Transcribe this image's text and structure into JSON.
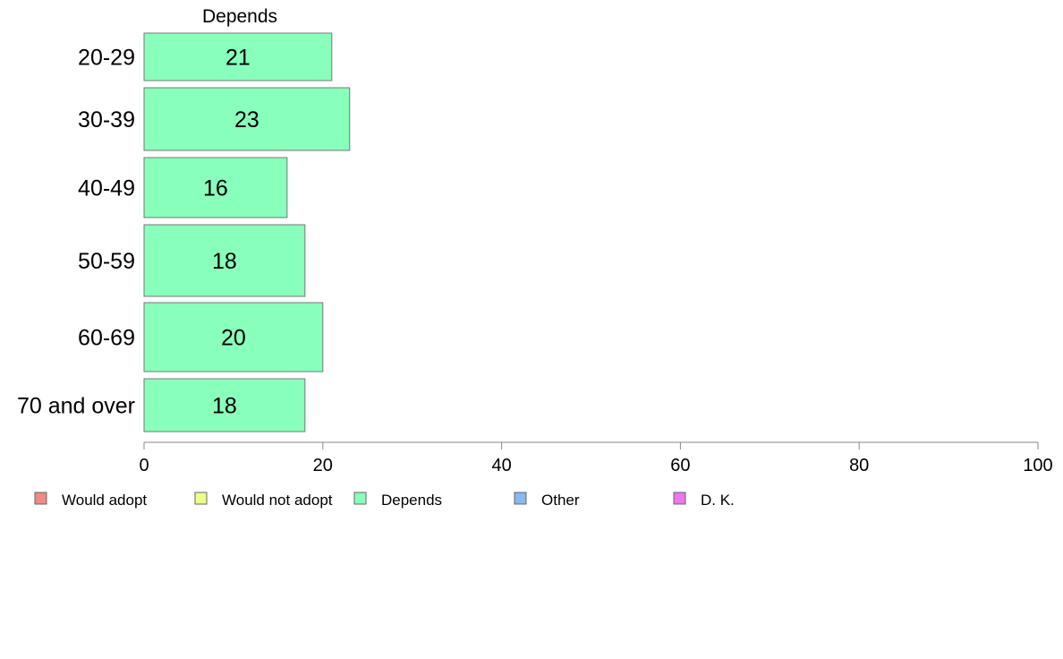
{
  "chart_data": {
    "type": "bar",
    "orientation": "horizontal",
    "title": "Depends",
    "categories": [
      "20-29",
      "30-39",
      "40-49",
      "50-59",
      "60-69",
      "70 and over"
    ],
    "series": [
      {
        "name": "Depends",
        "values": [
          21,
          23,
          16,
          18,
          20,
          18
        ],
        "color": "#88ffbb"
      }
    ],
    "xlim": [
      0,
      100
    ],
    "xticks": [
      0,
      20,
      40,
      60,
      80,
      100
    ],
    "grid": false,
    "legend": {
      "placement": "bottom-left",
      "entries": [
        {
          "label": "Would adopt",
          "color": "#f08a84"
        },
        {
          "label": "Would not adopt",
          "color": "#ecff88"
        },
        {
          "label": "Depends",
          "color": "#88ffbb"
        },
        {
          "label": "Other",
          "color": "#88b8f5"
        },
        {
          "label": "D. K.",
          "color": "#ee77ee"
        }
      ]
    }
  }
}
